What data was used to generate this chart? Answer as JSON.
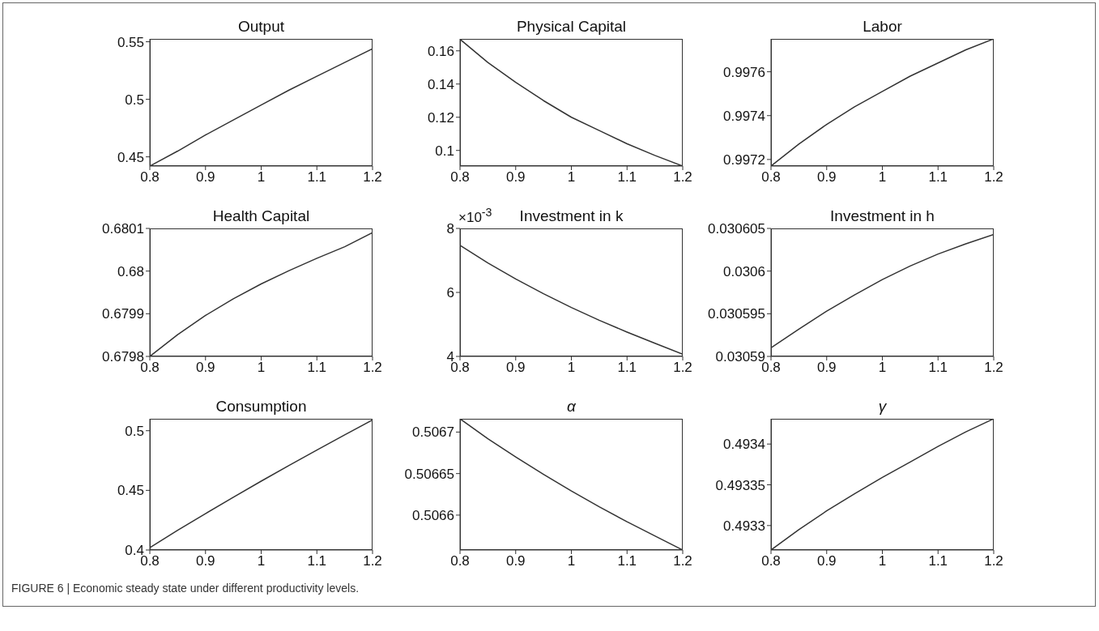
{
  "chart_data": [
    {
      "type": "line",
      "title": "Output",
      "x": [
        0.8,
        0.85,
        0.9,
        0.95,
        1,
        1.05,
        1.1,
        1.15,
        1.2
      ],
      "values": [
        0.442,
        0.455,
        0.469,
        0.482,
        0.495,
        0.508,
        0.52,
        0.532,
        0.544
      ],
      "color": "#333333",
      "marker": "none",
      "xlim": [
        0.8,
        1.2
      ],
      "xticks": [
        0.8,
        0.9,
        1,
        1.1,
        1.2
      ],
      "ylim": [
        0.442,
        0.5525
      ],
      "yticks": [
        0.45,
        0.5,
        0.55
      ]
    },
    {
      "type": "line",
      "title": "Physical Capital",
      "x": [
        0.8,
        0.85,
        0.9,
        0.95,
        1,
        1.05,
        1.1,
        1.15,
        1.2
      ],
      "values": [
        0.167,
        0.153,
        0.141,
        0.13,
        0.12,
        0.112,
        0.104,
        0.097,
        0.0906
      ],
      "color": "#333333",
      "marker": "none",
      "xlim": [
        0.8,
        1.2
      ],
      "xticks": [
        0.8,
        0.9,
        1,
        1.1,
        1.2
      ],
      "ylim": [
        0.0906,
        0.1672
      ],
      "yticks": [
        0.1,
        0.12,
        0.14,
        0.16
      ]
    },
    {
      "type": "line",
      "title": "Labor",
      "x": [
        0.8,
        0.85,
        0.9,
        0.95,
        1,
        1.05,
        1.1,
        1.15,
        1.2
      ],
      "values": [
        0.99717,
        0.99727,
        0.99736,
        0.99744,
        0.99751,
        0.99758,
        0.99764,
        0.9977,
        0.99775
      ],
      "color": "#333333",
      "marker": "none",
      "xlim": [
        0.8,
        1.2
      ],
      "xticks": [
        0.8,
        0.9,
        1,
        1.1,
        1.2
      ],
      "ylim": [
        0.99717,
        0.99775
      ],
      "yticks": [
        0.9972,
        0.9974,
        0.9976
      ]
    },
    {
      "type": "line",
      "title": "Health Capital",
      "x": [
        0.8,
        0.85,
        0.9,
        0.95,
        1,
        1.05,
        1.1,
        1.15,
        1.2
      ],
      "values": [
        0.6798,
        0.679851,
        0.679896,
        0.679935,
        0.67997,
        0.680001,
        0.68003,
        0.680057,
        0.68009
      ],
      "color": "#333333",
      "marker": "none",
      "xlim": [
        0.8,
        1.2
      ],
      "xticks": [
        0.8,
        0.9,
        1,
        1.1,
        1.2
      ],
      "ylim": [
        0.6798,
        0.6801
      ],
      "yticks": [
        0.6798,
        0.6799,
        0.68,
        0.6801
      ]
    },
    {
      "type": "line",
      "title": "Investment in k",
      "annotations": [
        "×10$^{-3}$"
      ],
      "x": [
        0.8,
        0.85,
        0.9,
        0.95,
        1,
        1.05,
        1.1,
        1.15,
        1.2
      ],
      "values": [
        7.47,
        6.92,
        6.42,
        5.96,
        5.53,
        5.13,
        4.76,
        4.41,
        4.07
      ],
      "color": "#333333",
      "marker": "none",
      "xlim": [
        0.8,
        1.2
      ],
      "xticks": [
        0.8,
        0.9,
        1,
        1.1,
        1.2
      ],
      "ylim": [
        4,
        8
      ],
      "yticks": [
        4,
        6,
        8
      ]
    },
    {
      "type": "line",
      "title": "Investment in h",
      "x": [
        0.8,
        0.85,
        0.9,
        0.95,
        1,
        1.05,
        1.1,
        1.15,
        1.2
      ],
      "values": [
        0.030591,
        0.0305932,
        0.0305953,
        0.0305972,
        0.030599,
        0.0306006,
        0.030602,
        0.0306032,
        0.0306043
      ],
      "color": "#333333",
      "marker": "none",
      "xlim": [
        0.8,
        1.2
      ],
      "xticks": [
        0.8,
        0.9,
        1,
        1.1,
        1.2
      ],
      "ylim": [
        0.03059,
        0.030605
      ],
      "yticks": [
        0.03059,
        0.030595,
        0.0306,
        0.030605
      ]
    },
    {
      "type": "line",
      "title": "Consumption",
      "x": [
        0.8,
        0.85,
        0.9,
        0.95,
        1,
        1.05,
        1.1,
        1.15,
        1.2
      ],
      "values": [
        0.402,
        0.4165,
        0.4305,
        0.4442,
        0.4577,
        0.4709,
        0.4838,
        0.4965,
        0.509
      ],
      "color": "#333333",
      "marker": "none",
      "xlim": [
        0.8,
        1.2
      ],
      "xticks": [
        0.8,
        0.9,
        1,
        1.1,
        1.2
      ],
      "ylim": [
        0.4,
        0.51
      ],
      "yticks": [
        0.4,
        0.45,
        0.5
      ]
    },
    {
      "type": "line",
      "title": "α",
      "x": [
        0.8,
        0.85,
        0.9,
        0.95,
        1,
        1.05,
        1.1,
        1.15,
        1.2
      ],
      "values": [
        0.506716,
        0.506692,
        0.50667,
        0.506649,
        0.506629,
        0.50661,
        0.506592,
        0.506575,
        0.506558
      ],
      "color": "#333333",
      "marker": "none",
      "xlim": [
        0.8,
        1.2
      ],
      "xticks": [
        0.8,
        0.9,
        1,
        1.1,
        1.2
      ],
      "ylim": [
        0.506558,
        0.506716
      ],
      "yticks": [
        0.5066,
        0.50665,
        0.5067
      ]
    },
    {
      "type": "line",
      "title": "γ",
      "annotations": [
        "FIGURE 6 | Economic steady state under different productivity levels."
      ],
      "x": [
        0.8,
        0.85,
        0.9,
        0.95,
        1,
        1.05,
        1.1,
        1.15,
        1.2
      ],
      "values": [
        0.49327,
        0.493295,
        0.493318,
        0.493339,
        0.493359,
        0.493378,
        0.493397,
        0.493415,
        0.493431
      ],
      "color": "#333333",
      "marker": "none",
      "xlim": [
        0.8,
        1.2
      ],
      "xticks": [
        0.8,
        0.9,
        1,
        1.1,
        1.2
      ],
      "ylim": [
        0.49327,
        0.493431
      ],
      "yticks": [
        0.4933,
        0.49335,
        0.4934
      ]
    }
  ]
}
